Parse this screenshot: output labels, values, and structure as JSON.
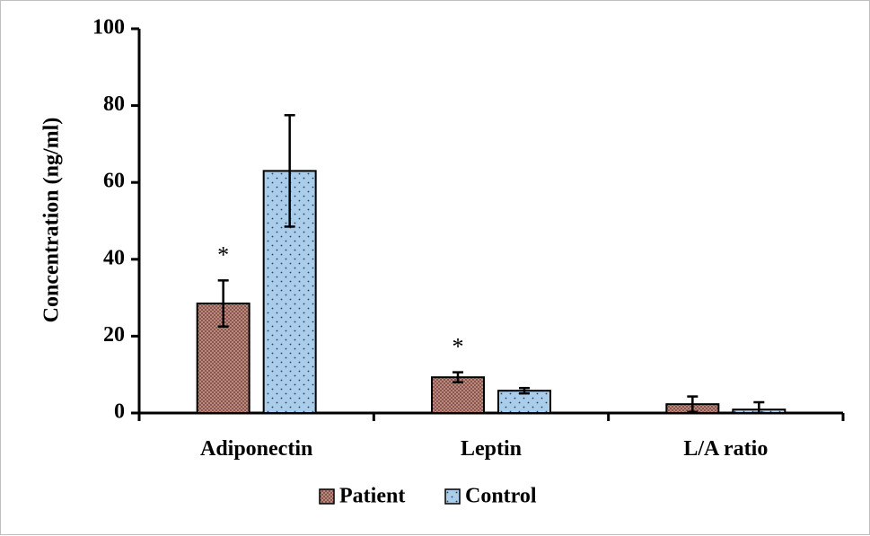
{
  "chart_data": {
    "type": "bar",
    "title": "",
    "xlabel": "",
    "ylabel": "Concentration (ng/ml)",
    "ylim": [
      0,
      100
    ],
    "yticks": [
      0,
      20,
      40,
      60,
      80,
      100
    ],
    "categories": [
      "Adiponectin",
      "Leptin",
      "L/A ratio"
    ],
    "series": [
      {
        "name": "Patient",
        "values": [
          28.5,
          9.3,
          2.3
        ],
        "errors": [
          6.0,
          1.3,
          2.0
        ],
        "color": "#c9968a",
        "pattern": "crosshatch"
      },
      {
        "name": "Control",
        "values": [
          63.0,
          5.8,
          0.9
        ],
        "errors": [
          14.5,
          0.7,
          1.9
        ],
        "color": "#a9cdea",
        "pattern": "dots"
      }
    ],
    "annotations": [
      {
        "category": "Adiponectin",
        "series": "Patient",
        "text": "*"
      },
      {
        "category": "Leptin",
        "series": "Patient",
        "text": "*"
      }
    ],
    "grid": false,
    "legend": "bottom"
  }
}
